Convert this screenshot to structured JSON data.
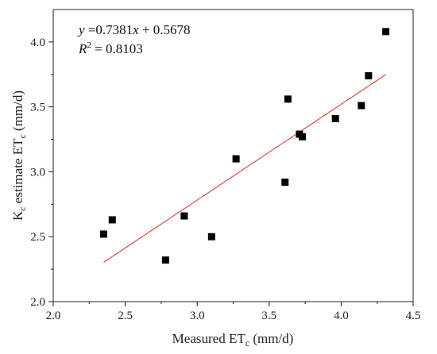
{
  "chart_data": {
    "type": "scatter",
    "xlabel": "Measured ET",
    "xlabel_sub": "c",
    "xlabel_unit": " (mm/d)",
    "ylabel_main": "K",
    "ylabel_sub1": "c",
    "ylabel_mid": " estimate ET",
    "ylabel_sub2": "c",
    "ylabel_unit": " (mm/d)",
    "xlim": [
      2.0,
      4.5
    ],
    "ylim": [
      2.0,
      4.25
    ],
    "xticks": [
      "2.0",
      "2.5",
      "3.0",
      "3.5",
      "4.0",
      "4.5"
    ],
    "yticks": [
      "2.0",
      "2.5",
      "3.0",
      "3.5",
      "4.0"
    ],
    "grid": false,
    "legend": "none",
    "marker_color": "#000000",
    "fit_line_color": "#d9302c",
    "points": [
      {
        "x": 2.35,
        "y": 2.52
      },
      {
        "x": 2.41,
        "y": 2.63
      },
      {
        "x": 2.78,
        "y": 2.32
      },
      {
        "x": 2.91,
        "y": 2.66
      },
      {
        "x": 3.1,
        "y": 2.5
      },
      {
        "x": 3.27,
        "y": 3.1
      },
      {
        "x": 3.61,
        "y": 2.92
      },
      {
        "x": 3.63,
        "y": 3.56
      },
      {
        "x": 3.71,
        "y": 3.29
      },
      {
        "x": 3.73,
        "y": 3.27
      },
      {
        "x": 3.96,
        "y": 3.41
      },
      {
        "x": 4.14,
        "y": 3.51
      },
      {
        "x": 4.19,
        "y": 3.74
      },
      {
        "x": 4.31,
        "y": 4.08
      }
    ],
    "fit": {
      "slope": 0.7381,
      "intercept": 0.5678,
      "x_range": [
        2.35,
        4.31
      ]
    },
    "annotation": {
      "eq_y": "y",
      "eq_mid": " =0.7381",
      "eq_x": "x",
      "eq_rest": " + 0.5678",
      "r2_R": "R",
      "r2_sup": "2",
      "r2_rest": " = 0.8103"
    }
  }
}
